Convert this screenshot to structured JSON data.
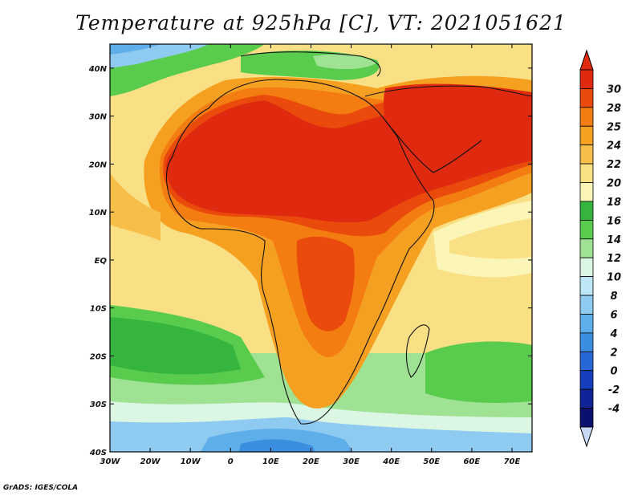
{
  "title": "Temperature at 925hPa [C], VT: 2021051621",
  "credit": "GrADS: IGES/COLA",
  "map": {
    "lon_labels": [
      "30W",
      "20W",
      "10W",
      "0",
      "10E",
      "20E",
      "30E",
      "40E",
      "50E",
      "60E",
      "70E"
    ],
    "lat_labels": [
      "40N",
      "30N",
      "20N",
      "10N",
      "EQ",
      "10S",
      "20S",
      "30S",
      "40S"
    ],
    "lon_range": [
      -30,
      75
    ],
    "lat_range": [
      -40,
      45
    ]
  },
  "colorbar": {
    "labels": [
      "30",
      "28",
      "25",
      "24",
      "22",
      "20",
      "18",
      "16",
      "14",
      "12",
      "10",
      "8",
      "6",
      "4",
      "2",
      "0",
      "-2",
      "-4"
    ],
    "colors": [
      "#e02a10",
      "#ea4a0c",
      "#f47d12",
      "#f5a020",
      "#f7bf4a",
      "#fae085",
      "#fbf6b8",
      "#35b53d",
      "#59cc4e",
      "#9fe293",
      "#dcf6e4",
      "#bde6f6",
      "#8fcbf0",
      "#5eaeea",
      "#3c8ee0",
      "#2568d6",
      "#173fbd",
      "#102498",
      "#0b0f6e"
    ],
    "overflow_top": "#e02a10",
    "overflow_bottom": "#c8d8f8"
  }
}
